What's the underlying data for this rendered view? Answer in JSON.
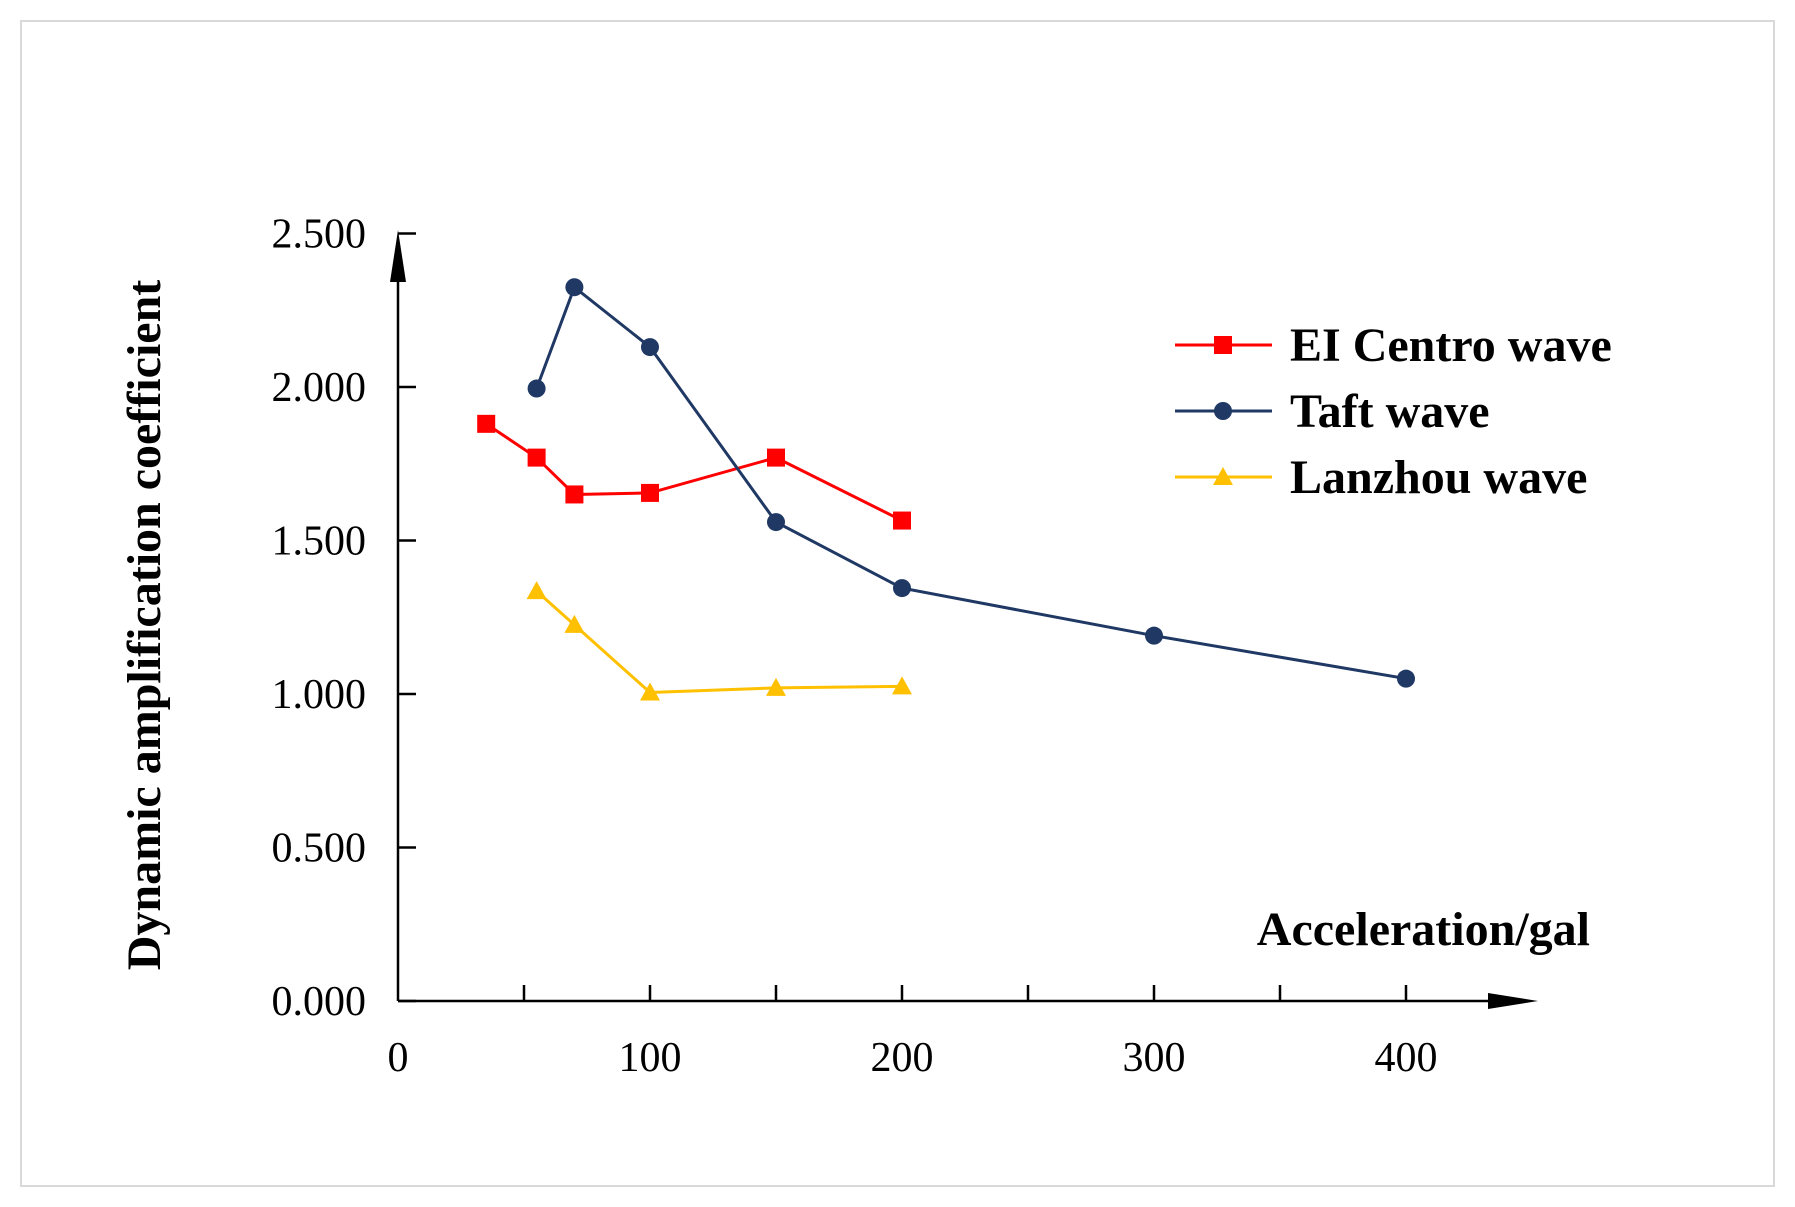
{
  "chart_data": {
    "type": "line",
    "title": "",
    "xlabel": "Acceleration/gal",
    "ylabel": "Dynamic amplification coefficient",
    "xlim": [
      0,
      450
    ],
    "ylim": [
      0,
      2.5
    ],
    "x_ticks": [
      0,
      100,
      200,
      300,
      400
    ],
    "x_minor_ticks": [
      50,
      150,
      250,
      350
    ],
    "y_ticks": [
      "0.000",
      "0.500",
      "1.000",
      "1.500",
      "2.000",
      "2.500"
    ],
    "y_tick_values": [
      0,
      0.5,
      1.0,
      1.5,
      2.0,
      2.5
    ],
    "grid": false,
    "legend_position": "top-right",
    "series": [
      {
        "name": "EI Centro wave",
        "color": "#ff0000",
        "marker": "square",
        "x": [
          35,
          55,
          70,
          100,
          150,
          200
        ],
        "values": [
          1.88,
          1.77,
          1.65,
          1.655,
          1.77,
          1.565
        ]
      },
      {
        "name": "Taft wave",
        "color": "#1f3864",
        "marker": "circle",
        "x": [
          55,
          70,
          100,
          150,
          200,
          300,
          400
        ],
        "values": [
          1.995,
          2.325,
          2.13,
          1.56,
          1.345,
          1.19,
          1.05
        ]
      },
      {
        "name": "Lanzhou wave",
        "color": "#ffc000",
        "marker": "triangle",
        "x": [
          55,
          70,
          100,
          150,
          200
        ],
        "values": [
          1.335,
          1.225,
          1.005,
          1.02,
          1.025
        ]
      }
    ]
  }
}
